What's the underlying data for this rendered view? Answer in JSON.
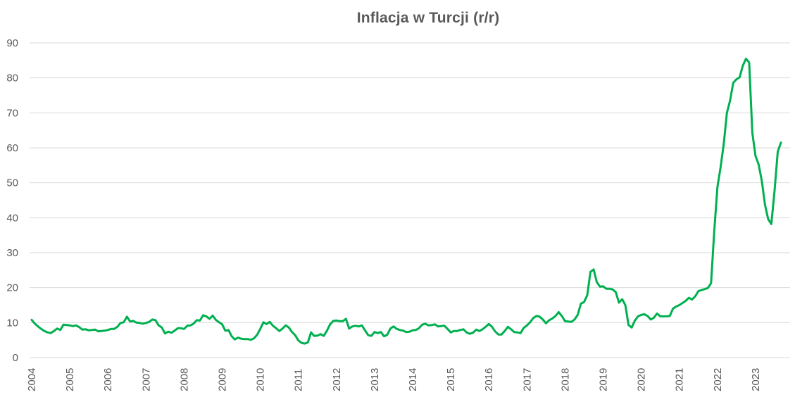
{
  "chart_data": {
    "type": "line",
    "title": "Inflacja w Turcji (r/r)",
    "xlabel": "",
    "ylabel": "",
    "ylim": [
      0,
      90
    ],
    "yticks": [
      0,
      10,
      20,
      30,
      40,
      50,
      60,
      70,
      80,
      90
    ],
    "xticks": [
      "2004",
      "2005",
      "2006",
      "2007",
      "2008",
      "2009",
      "2010",
      "2011",
      "2012",
      "2013",
      "2014",
      "2015",
      "2016",
      "2017",
      "2018",
      "2019",
      "2020",
      "2021",
      "2022",
      "2023"
    ],
    "grid": true,
    "legend": "none",
    "frequency": "monthly",
    "start": "2004-01",
    "end": "2023-09",
    "series": [
      {
        "name": "Inflacja r/r",
        "color": "#00b050",
        "values": [
          10.8,
          9.7,
          8.9,
          8.2,
          7.6,
          7.2,
          7.0,
          7.6,
          8.3,
          7.9,
          9.4,
          9.3,
          9.2,
          9.0,
          9.2,
          8.7,
          8.0,
          8.1,
          7.8,
          7.9,
          8.0,
          7.5,
          7.6,
          7.7,
          7.9,
          8.2,
          8.2,
          8.8,
          9.9,
          10.1,
          11.7,
          10.3,
          10.5,
          10.0,
          9.9,
          9.7,
          9.9,
          10.2,
          10.9,
          10.7,
          9.2,
          8.6,
          6.9,
          7.4,
          7.1,
          7.7,
          8.4,
          8.4,
          8.2,
          9.1,
          9.2,
          9.7,
          10.7,
          10.6,
          12.1,
          11.8,
          11.1,
          12.0,
          10.8,
          10.1,
          9.5,
          7.7,
          7.9,
          6.1,
          5.2,
          5.7,
          5.4,
          5.3,
          5.3,
          5.1,
          5.5,
          6.5,
          8.2,
          10.1,
          9.6,
          10.2,
          9.1,
          8.4,
          7.6,
          8.3,
          9.2,
          8.6,
          7.3,
          6.4,
          4.9,
          4.2,
          4.0,
          4.3,
          7.2,
          6.2,
          6.3,
          6.7,
          6.2,
          7.7,
          9.5,
          10.5,
          10.6,
          10.4,
          10.4,
          11.1,
          8.3,
          8.9,
          9.1,
          8.9,
          9.2,
          7.8,
          6.4,
          6.2,
          7.3,
          7.0,
          7.3,
          6.1,
          6.5,
          8.3,
          8.9,
          8.2,
          7.9,
          7.7,
          7.3,
          7.4,
          7.8,
          7.9,
          8.4,
          9.4,
          9.7,
          9.2,
          9.3,
          9.5,
          8.9,
          9.0,
          9.1,
          8.2,
          7.2,
          7.6,
          7.6,
          7.9,
          8.1,
          7.2,
          6.8,
          7.1,
          8.0,
          7.6,
          8.1,
          8.8,
          9.6,
          8.8,
          7.5,
          6.6,
          6.6,
          7.6,
          8.8,
          8.1,
          7.3,
          7.2,
          7.0,
          8.5,
          9.2,
          10.1,
          11.3,
          11.9,
          11.7,
          10.9,
          9.8,
          10.7,
          11.2,
          11.9,
          13.0,
          11.9,
          10.4,
          10.3,
          10.2,
          10.9,
          12.2,
          15.4,
          15.9,
          17.9,
          24.5,
          25.2,
          21.6,
          20.3,
          20.4,
          19.7,
          19.7,
          19.5,
          18.7,
          15.7,
          16.7,
          15.0,
          9.3,
          8.6,
          10.6,
          11.8,
          12.2,
          12.4,
          11.9,
          10.9,
          11.4,
          12.6,
          11.8,
          11.8,
          11.8,
          11.9,
          14.0,
          14.6,
          15.0,
          15.6,
          16.2,
          17.1,
          16.6,
          17.5,
          19.0,
          19.3,
          19.6,
          19.9,
          21.3,
          36.1,
          48.7,
          54.4,
          61.1,
          70.0,
          73.5,
          78.6,
          79.6,
          80.2,
          83.5,
          85.5,
          84.4,
          64.3,
          57.7,
          55.2,
          50.5,
          43.7,
          39.6,
          38.2,
          47.8,
          58.9,
          61.5
        ]
      }
    ]
  }
}
